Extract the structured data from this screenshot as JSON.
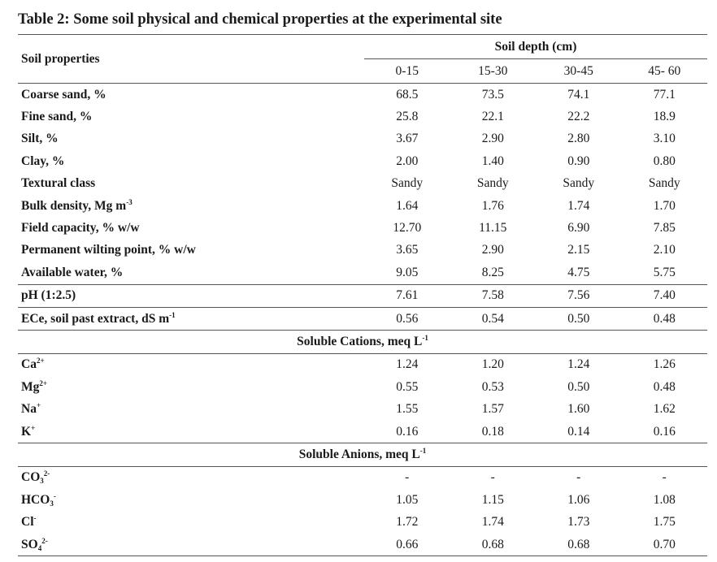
{
  "caption": "Table 2: Some soil physical and chemical properties at the experimental site",
  "header": {
    "property_label": "Soil properties",
    "group_label": "Soil depth (cm)",
    "depths": [
      "0-15",
      "15-30",
      "30-45",
      "45- 60"
    ]
  },
  "physical_rows": [
    {
      "label": "Coarse sand, %",
      "values": [
        "68.5",
        "73.5",
        "74.1",
        "77.1"
      ]
    },
    {
      "label": "Fine sand, %",
      "values": [
        "25.8",
        "22.1",
        "22.2",
        "18.9"
      ]
    },
    {
      "label": "Silt, %",
      "values": [
        "3.67",
        "2.90",
        "2.80",
        "3.10"
      ]
    },
    {
      "label": "Clay, %",
      "values": [
        "2.00",
        "1.40",
        "0.90",
        "0.80"
      ]
    },
    {
      "label": "Textural class",
      "values": [
        "Sandy",
        "Sandy",
        "Sandy",
        "Sandy"
      ]
    },
    {
      "label": "Bulk density, Mg m",
      "label_sup": "-3",
      "values": [
        "1.64",
        "1.76",
        "1.74",
        "1.70"
      ]
    },
    {
      "label": "Field capacity, % w/w",
      "values": [
        "12.70",
        "11.15",
        "6.90",
        "7.85"
      ]
    },
    {
      "label": "Permanent wilting point, % w/w",
      "values": [
        "3.65",
        "2.90",
        "2.15",
        "2.10"
      ]
    },
    {
      "label": "Available water, %",
      "values": [
        "9.05",
        "8.25",
        "4.75",
        "5.75"
      ]
    }
  ],
  "ph_row": {
    "label": "pH (1:2.5)",
    "values": [
      "7.61",
      "7.58",
      "7.56",
      "7.40"
    ]
  },
  "ece_row": {
    "label": "ECe, soil past extract, dS m",
    "label_sup": "-1",
    "values": [
      "0.56",
      "0.54",
      "0.50",
      "0.48"
    ]
  },
  "cations": {
    "title": "Soluble Cations, meq L",
    "title_sup": "-1",
    "rows": [
      {
        "label": "Ca",
        "label_sup": "2+",
        "values": [
          "1.24",
          "1.20",
          "1.24",
          "1.26"
        ]
      },
      {
        "label": "Mg",
        "label_sup": "2+",
        "values": [
          "0.55",
          "0.53",
          "0.50",
          "0.48"
        ]
      },
      {
        "label": "Na",
        "label_sup": "+",
        "values": [
          "1.55",
          "1.57",
          "1.60",
          "1.62"
        ]
      },
      {
        "label": "K",
        "label_sup": "+",
        "values": [
          "0.16",
          "0.18",
          "0.14",
          "0.16"
        ]
      }
    ]
  },
  "anions": {
    "title": "Soluble Anions, meq L",
    "title_sup": "-1",
    "rows": [
      {
        "label": "CO",
        "label_sub": "3",
        "label_sup": "2-",
        "values": [
          "-",
          "-",
          "-",
          "-"
        ]
      },
      {
        "label": "HCO",
        "label_sub": "3",
        "label_sup": "-",
        "values": [
          "1.05",
          "1.15",
          "1.06",
          "1.08"
        ]
      },
      {
        "label": "Cl",
        "label_sup": "-",
        "values": [
          "1.72",
          "1.74",
          "1.73",
          "1.75"
        ]
      },
      {
        "label": "SO",
        "label_sub": "4",
        "label_sup": "2-",
        "values": [
          "0.66",
          "0.68",
          "0.68",
          "0.70"
        ]
      }
    ]
  }
}
